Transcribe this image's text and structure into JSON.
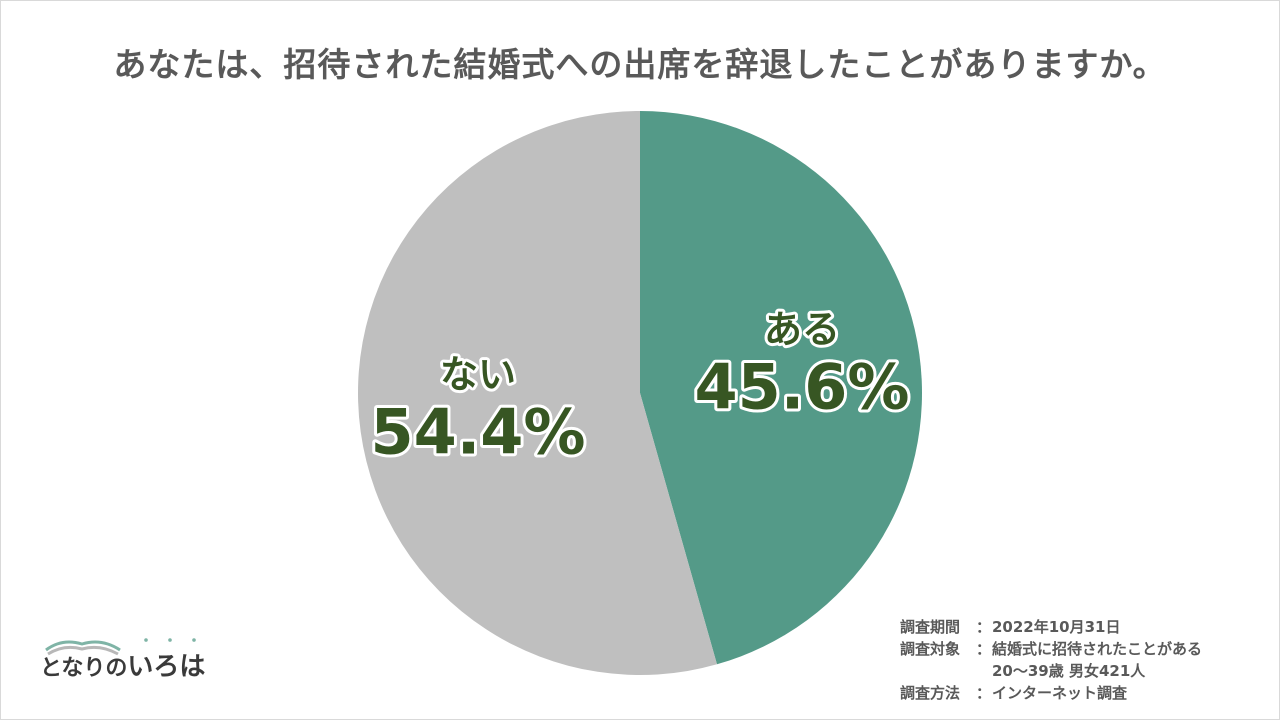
{
  "title": "あなたは、招待された結婚式への出席を辞退したことがありますか。",
  "chart_data": {
    "type": "pie",
    "slices": [
      {
        "label": "ある",
        "value": 45.6,
        "display": "45.6%",
        "color": "#549a88"
      },
      {
        "label": "ない",
        "value": 54.4,
        "display": "54.4%",
        "color": "#bfbfbf"
      }
    ],
    "start": "12 o'clock",
    "direction": "clockwise"
  },
  "notes": {
    "period_key": "調査期間",
    "period_value": "2022年10月31日",
    "target_key": "調査対象",
    "target_value_1": "結婚式に招待されたことがある",
    "target_value_2": "20～39歳 男女421人",
    "method_key": "調査方法",
    "method_value": "インターネット調査",
    "separator": "："
  },
  "logo": {
    "text_a": "となりの",
    "text_b": "いろは"
  }
}
